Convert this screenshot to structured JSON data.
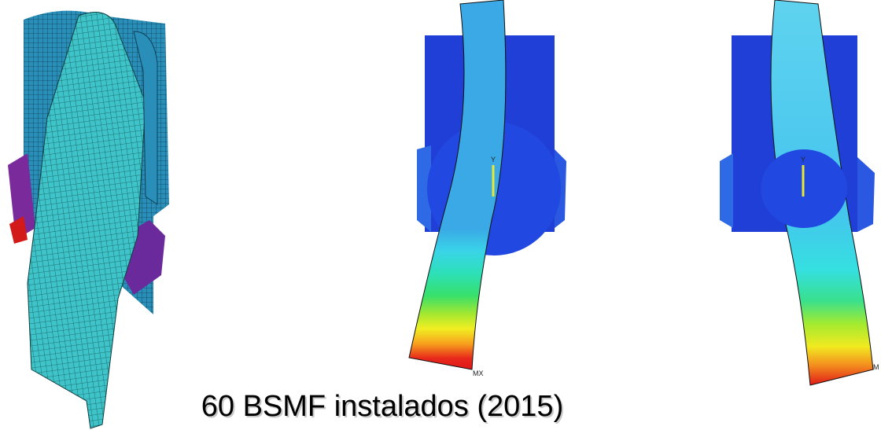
{
  "caption": "60 BSMF instalados (2015)",
  "figures": [
    {
      "axis_label": "Y",
      "max_label": "MX"
    },
    {
      "axis_label": "Y",
      "max_label": "M"
    }
  ]
}
